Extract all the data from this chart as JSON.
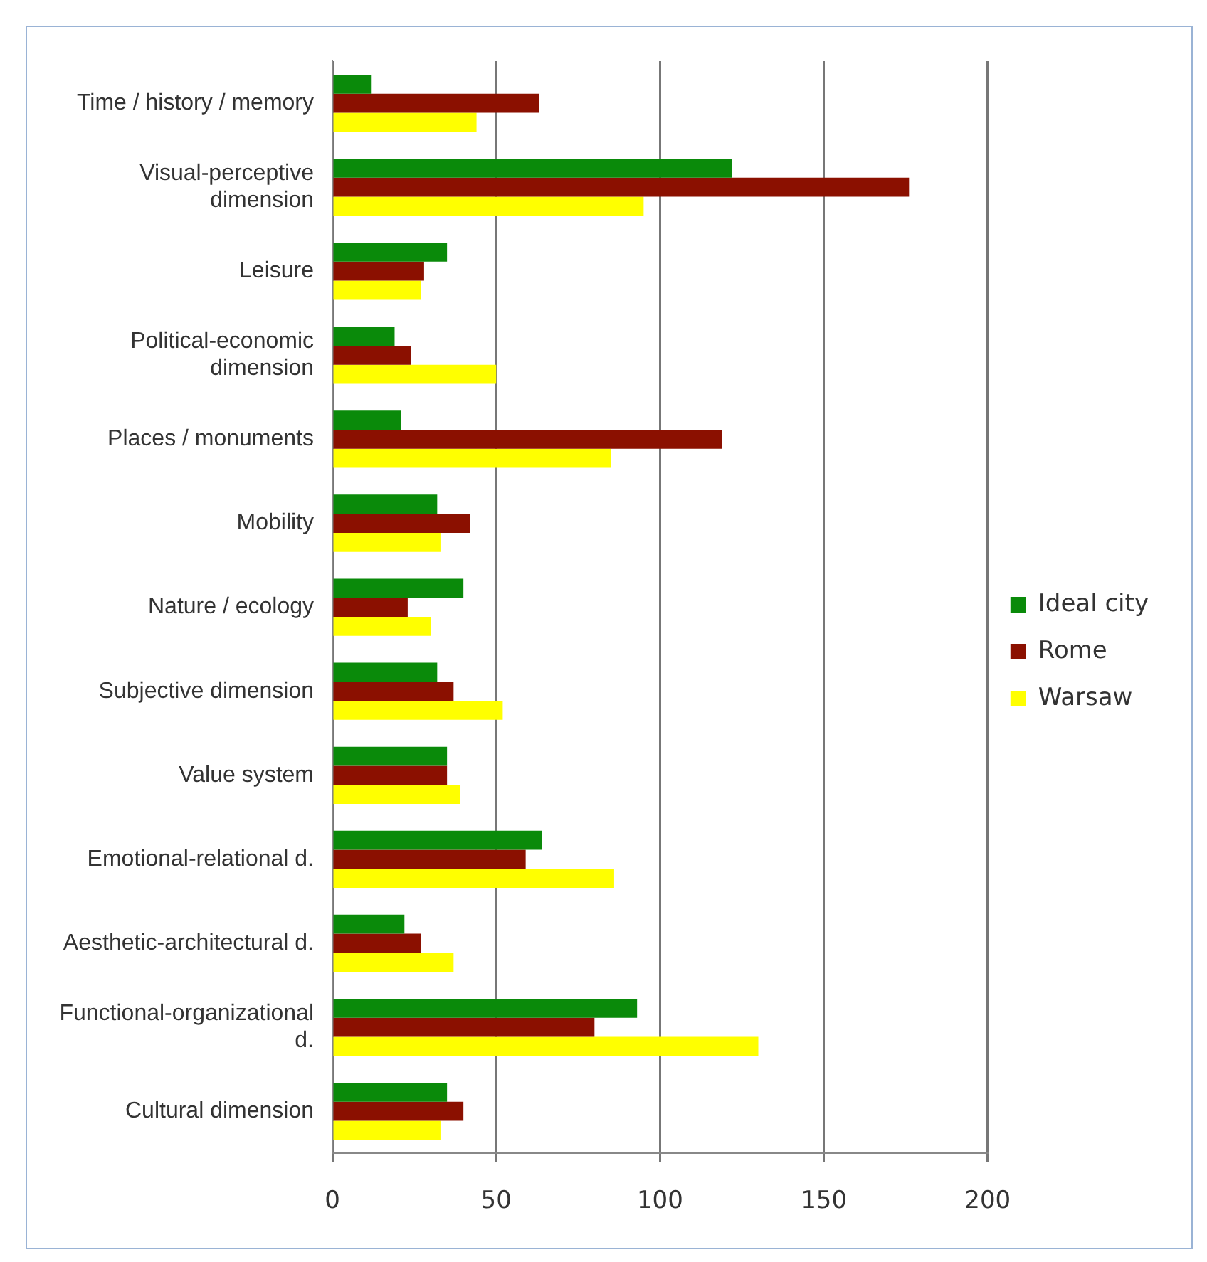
{
  "chart_data": {
    "type": "bar",
    "orientation": "horizontal",
    "categories": [
      "Time / history / memory",
      "Visual-perceptive dimension",
      "Leisure",
      "Political-economic dimension",
      "Places / monuments",
      "Mobility",
      "Nature / ecology",
      "Subjective dimension",
      "Value system",
      "Emotional-relational d.",
      "Aesthetic-architectural d.",
      "Functional-organizational d.",
      "Cultural dimension"
    ],
    "series": [
      {
        "name": "Ideal city",
        "color": "#0a8a0a",
        "values": [
          12,
          122,
          35,
          19,
          21,
          32,
          40,
          32,
          35,
          64,
          22,
          93,
          35
        ]
      },
      {
        "name": "Rome",
        "color": "#8b1000",
        "values": [
          63,
          176,
          28,
          24,
          119,
          42,
          23,
          37,
          35,
          59,
          27,
          80,
          40
        ]
      },
      {
        "name": "Warsaw",
        "color": "#ffff00",
        "values": [
          44,
          95,
          27,
          50,
          85,
          33,
          30,
          52,
          39,
          86,
          37,
          130,
          33
        ]
      }
    ],
    "xlim": [
      0,
      200
    ],
    "xticks": [
      0,
      50,
      100,
      150,
      200
    ],
    "grid": "x",
    "legend": "right"
  }
}
